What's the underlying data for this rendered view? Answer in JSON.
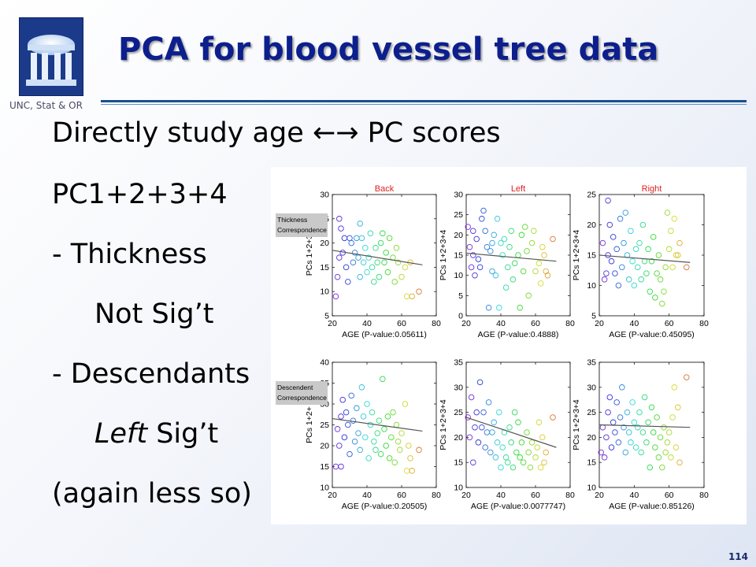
{
  "slide": {
    "title": "PCA for blood vessel tree data",
    "affiliation": "UNC, Stat & OR",
    "page_number": "114"
  },
  "bullets": {
    "line1": "Directly study age  ←→  PC scores",
    "line2": "PC1+2+3+4",
    "line3": "- Thickness",
    "line4": "Not Sig’t",
    "line5": "- Descendants",
    "line6_italic": "Left",
    "line6_rest": " Sig’t",
    "line7": "(again less so)"
  },
  "chart_data": [
    {
      "type": "scatter",
      "panel": "Back",
      "title": "Back",
      "xlabel": "AGE  (P-value:0.05611)",
      "ylabel": "PCs 1+2+3",
      "side_label": [
        "Thickness",
        "Correspondence"
      ],
      "xlim": [
        20,
        80
      ],
      "ylim": [
        5,
        30
      ],
      "xticks": [
        20,
        40,
        60,
        80
      ],
      "yticks": [
        5,
        10,
        15,
        20,
        25,
        30
      ],
      "points": [
        [
          22,
          9
        ],
        [
          23,
          13
        ],
        [
          24,
          17
        ],
        [
          24,
          25
        ],
        [
          25,
          23
        ],
        [
          26,
          18
        ],
        [
          27,
          21
        ],
        [
          28,
          15
        ],
        [
          29,
          12
        ],
        [
          30,
          21
        ],
        [
          31,
          20
        ],
        [
          32,
          16
        ],
        [
          33,
          18
        ],
        [
          34,
          21
        ],
        [
          35,
          17
        ],
        [
          36,
          13
        ],
        [
          36,
          24
        ],
        [
          37,
          21
        ],
        [
          38,
          16
        ],
        [
          39,
          19
        ],
        [
          40,
          14
        ],
        [
          41,
          17
        ],
        [
          42,
          22
        ],
        [
          43,
          15
        ],
        [
          44,
          12
        ],
        [
          45,
          19
        ],
        [
          46,
          16
        ],
        [
          47,
          13
        ],
        [
          48,
          20
        ],
        [
          49,
          22
        ],
        [
          50,
          16
        ],
        [
          51,
          18
        ],
        [
          52,
          14
        ],
        [
          53,
          21
        ],
        [
          55,
          17
        ],
        [
          56,
          12
        ],
        [
          57,
          19
        ],
        [
          58,
          16
        ],
        [
          60,
          13
        ],
        [
          62,
          15
        ],
        [
          63,
          9
        ],
        [
          65,
          16
        ],
        [
          66,
          9
        ],
        [
          70,
          10
        ]
      ],
      "trend": [
        [
          20,
          18.5
        ],
        [
          72,
          15.5
        ]
      ]
    },
    {
      "type": "scatter",
      "panel": "Left",
      "title": "Left",
      "xlabel": "AGE  (P-value:0.4888)",
      "ylabel": "PCs 1+2+3+4",
      "side_label": [],
      "xlim": [
        20,
        80
      ],
      "ylim": [
        0,
        30
      ],
      "xticks": [
        20,
        40,
        60,
        80
      ],
      "yticks": [
        0,
        5,
        10,
        15,
        20,
        25,
        30
      ],
      "points": [
        [
          21,
          22
        ],
        [
          22,
          17
        ],
        [
          23,
          12
        ],
        [
          24,
          15
        ],
        [
          24,
          21
        ],
        [
          25,
          10
        ],
        [
          26,
          19
        ],
        [
          27,
          14
        ],
        [
          28,
          12
        ],
        [
          29,
          24
        ],
        [
          30,
          26
        ],
        [
          31,
          21
        ],
        [
          32,
          17
        ],
        [
          33,
          2
        ],
        [
          34,
          16
        ],
        [
          35,
          11
        ],
        [
          35,
          18
        ],
        [
          36,
          20
        ],
        [
          37,
          10
        ],
        [
          38,
          24
        ],
        [
          39,
          2
        ],
        [
          40,
          18
        ],
        [
          41,
          15
        ],
        [
          42,
          19
        ],
        [
          43,
          7
        ],
        [
          44,
          12
        ],
        [
          45,
          17
        ],
        [
          46,
          21
        ],
        [
          47,
          9
        ],
        [
          48,
          13
        ],
        [
          50,
          15
        ],
        [
          51,
          2
        ],
        [
          52,
          20
        ],
        [
          53,
          11
        ],
        [
          54,
          22
        ],
        [
          55,
          16
        ],
        [
          56,
          5
        ],
        [
          58,
          18
        ],
        [
          59,
          21
        ],
        [
          60,
          11
        ],
        [
          62,
          13
        ],
        [
          63,
          8
        ],
        [
          64,
          17
        ],
        [
          65,
          15
        ],
        [
          66,
          11
        ],
        [
          67,
          10
        ],
        [
          70,
          19
        ]
      ],
      "trend": [
        [
          20,
          15.5
        ],
        [
          72,
          13.5
        ]
      ]
    },
    {
      "type": "scatter",
      "panel": "Right",
      "title": "Right",
      "xlabel": "AGE  (P-value:0.45095)",
      "ylabel": "PCs 1+2+3+4",
      "side_label": [],
      "xlim": [
        20,
        80
      ],
      "ylim": [
        5,
        25
      ],
      "xticks": [
        20,
        40,
        60,
        80
      ],
      "yticks": [
        5,
        10,
        15,
        20,
        25
      ],
      "points": [
        [
          22,
          17
        ],
        [
          23,
          11
        ],
        [
          24,
          12
        ],
        [
          25,
          15
        ],
        [
          25,
          24
        ],
        [
          26,
          20
        ],
        [
          27,
          14
        ],
        [
          28,
          18
        ],
        [
          29,
          12
        ],
        [
          30,
          16
        ],
        [
          31,
          10
        ],
        [
          32,
          21
        ],
        [
          33,
          13
        ],
        [
          34,
          17
        ],
        [
          35,
          22
        ],
        [
          36,
          15
        ],
        [
          37,
          11
        ],
        [
          38,
          19
        ],
        [
          39,
          14
        ],
        [
          40,
          10
        ],
        [
          41,
          16
        ],
        [
          42,
          13
        ],
        [
          43,
          17
        ],
        [
          44,
          11
        ],
        [
          45,
          20
        ],
        [
          46,
          14
        ],
        [
          47,
          12
        ],
        [
          48,
          16
        ],
        [
          49,
          9
        ],
        [
          50,
          14
        ],
        [
          51,
          18
        ],
        [
          52,
          8
        ],
        [
          53,
          12
        ],
        [
          54,
          15
        ],
        [
          55,
          11
        ],
        [
          56,
          7
        ],
        [
          57,
          9
        ],
        [
          58,
          13
        ],
        [
          59,
          22
        ],
        [
          60,
          16
        ],
        [
          61,
          19
        ],
        [
          62,
          13
        ],
        [
          63,
          21
        ],
        [
          64,
          15
        ],
        [
          65,
          15
        ],
        [
          66,
          17
        ],
        [
          70,
          13
        ]
      ],
      "trend": [
        [
          20,
          15
        ],
        [
          72,
          13.8
        ]
      ]
    },
    {
      "type": "scatter",
      "panel": "Back",
      "title": "",
      "xlabel": "AGE  (P-value:0.20505)",
      "ylabel": "PCs 1+2+",
      "side_label": [
        "Descendent",
        "Correspondence"
      ],
      "xlim": [
        20,
        80
      ],
      "ylim": [
        10,
        40
      ],
      "xticks": [
        20,
        40,
        60,
        80
      ],
      "yticks": [
        10,
        15,
        20,
        25,
        30,
        35,
        40
      ],
      "points": [
        [
          22,
          15
        ],
        [
          23,
          24
        ],
        [
          24,
          20
        ],
        [
          25,
          27
        ],
        [
          25,
          15
        ],
        [
          26,
          31
        ],
        [
          27,
          22
        ],
        [
          28,
          28
        ],
        [
          29,
          25
        ],
        [
          30,
          18
        ],
        [
          31,
          32
        ],
        [
          32,
          26
        ],
        [
          33,
          21
        ],
        [
          34,
          29
        ],
        [
          35,
          23
        ],
        [
          36,
          19
        ],
        [
          37,
          34
        ],
        [
          38,
          27
        ],
        [
          39,
          22
        ],
        [
          40,
          30
        ],
        [
          41,
          17
        ],
        [
          42,
          25
        ],
        [
          43,
          28
        ],
        [
          44,
          21
        ],
        [
          45,
          19
        ],
        [
          46,
          23
        ],
        [
          47,
          26
        ],
        [
          48,
          18
        ],
        [
          49,
          36
        ],
        [
          50,
          24
        ],
        [
          51,
          20
        ],
        [
          52,
          27
        ],
        [
          53,
          17
        ],
        [
          54,
          22
        ],
        [
          55,
          28
        ],
        [
          56,
          16
        ],
        [
          57,
          25
        ],
        [
          58,
          21
        ],
        [
          59,
          19
        ],
        [
          60,
          23
        ],
        [
          62,
          30
        ],
        [
          63,
          14
        ],
        [
          64,
          20
        ],
        [
          65,
          17
        ],
        [
          66,
          14
        ],
        [
          70,
          19
        ]
      ],
      "trend": [
        [
          20,
          26.5
        ],
        [
          72,
          23.5
        ]
      ]
    },
    {
      "type": "scatter",
      "panel": "Left",
      "title": "",
      "xlabel": "AGE  (P-value:0.0077747)",
      "ylabel": "PCs 1+2+3+4",
      "side_label": [],
      "xlim": [
        20,
        80
      ],
      "ylim": [
        10,
        35
      ],
      "xticks": [
        20,
        40,
        60,
        80
      ],
      "yticks": [
        10,
        15,
        20,
        25,
        30,
        35
      ],
      "points": [
        [
          21,
          24
        ],
        [
          22,
          20
        ],
        [
          23,
          28
        ],
        [
          24,
          15
        ],
        [
          25,
          22
        ],
        [
          26,
          25
        ],
        [
          27,
          19
        ],
        [
          28,
          31
        ],
        [
          29,
          22
        ],
        [
          30,
          25
        ],
        [
          31,
          18
        ],
        [
          32,
          21
        ],
        [
          33,
          27
        ],
        [
          34,
          17
        ],
        [
          35,
          21
        ],
        [
          36,
          23
        ],
        [
          37,
          16
        ],
        [
          38,
          19
        ],
        [
          39,
          25
        ],
        [
          40,
          14
        ],
        [
          41,
          18
        ],
        [
          42,
          21
        ],
        [
          43,
          16
        ],
        [
          44,
          15
        ],
        [
          45,
          22
        ],
        [
          46,
          19
        ],
        [
          47,
          14
        ],
        [
          48,
          25
        ],
        [
          49,
          17
        ],
        [
          50,
          23
        ],
        [
          51,
          16
        ],
        [
          52,
          19
        ],
        [
          53,
          15
        ],
        [
          55,
          21
        ],
        [
          56,
          17
        ],
        [
          57,
          14
        ],
        [
          58,
          19
        ],
        [
          60,
          16
        ],
        [
          61,
          18
        ],
        [
          62,
          23
        ],
        [
          63,
          14
        ],
        [
          64,
          20
        ],
        [
          65,
          15
        ],
        [
          66,
          17
        ],
        [
          70,
          24
        ]
      ],
      "trend": [
        [
          20,
          24
        ],
        [
          72,
          18
        ]
      ]
    },
    {
      "type": "scatter",
      "panel": "Right",
      "title": "",
      "xlabel": "AGE  (P-value:0.85126)",
      "ylabel": "PCs 1+2+3+4",
      "side_label": [],
      "xlim": [
        20,
        80
      ],
      "ylim": [
        10,
        35
      ],
      "xticks": [
        20,
        40,
        60,
        80
      ],
      "yticks": [
        10,
        15,
        20,
        25,
        30,
        35
      ],
      "points": [
        [
          21,
          17
        ],
        [
          22,
          22
        ],
        [
          23,
          16
        ],
        [
          24,
          20
        ],
        [
          25,
          25
        ],
        [
          26,
          28
        ],
        [
          27,
          18
        ],
        [
          28,
          23
        ],
        [
          29,
          21
        ],
        [
          30,
          27
        ],
        [
          31,
          19
        ],
        [
          32,
          24
        ],
        [
          33,
          30
        ],
        [
          34,
          22
        ],
        [
          35,
          17
        ],
        [
          36,
          25
        ],
        [
          37,
          21
        ],
        [
          38,
          19
        ],
        [
          39,
          27
        ],
        [
          40,
          23
        ],
        [
          41,
          18
        ],
        [
          42,
          22
        ],
        [
          43,
          25
        ],
        [
          44,
          17
        ],
        [
          45,
          21
        ],
        [
          46,
          28
        ],
        [
          47,
          19
        ],
        [
          48,
          23
        ],
        [
          49,
          14
        ],
        [
          50,
          26
        ],
        [
          51,
          21
        ],
        [
          52,
          18
        ],
        [
          53,
          24
        ],
        [
          54,
          16
        ],
        [
          55,
          20
        ],
        [
          56,
          14
        ],
        [
          57,
          22
        ],
        [
          58,
          17
        ],
        [
          59,
          19
        ],
        [
          60,
          21
        ],
        [
          61,
          16
        ],
        [
          62,
          24
        ],
        [
          63,
          30
        ],
        [
          64,
          18
        ],
        [
          65,
          26
        ],
        [
          66,
          15
        ],
        [
          70,
          32
        ]
      ],
      "trend": [
        [
          20,
          22.5
        ],
        [
          72,
          22
        ]
      ]
    }
  ]
}
